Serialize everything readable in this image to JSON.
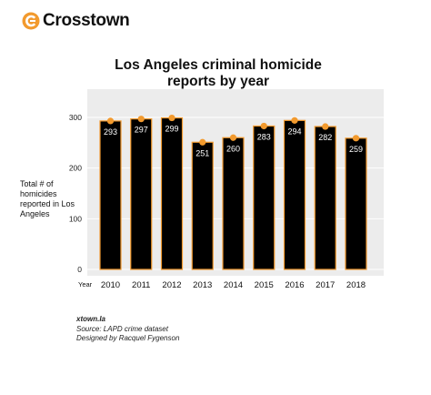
{
  "brand": {
    "name": "Crosstown",
    "icon": "crosstown-logo-icon",
    "accent": "#f29a2e"
  },
  "chart_data": {
    "type": "bar",
    "title": "Los Angeles criminal homicide reports by year",
    "xlabel": "Year",
    "ylabel": "Total # of homicides reported in Los Angeles",
    "categories": [
      "2010",
      "2011",
      "2012",
      "2013",
      "2014",
      "2015",
      "2016",
      "2017",
      "2018"
    ],
    "values": [
      293,
      297,
      299,
      251,
      260,
      283,
      294,
      282,
      259
    ],
    "yticks": [
      0,
      100,
      200,
      300
    ],
    "ylim": [
      0,
      320
    ],
    "grid": true,
    "bar_color": "#000000",
    "bar_outline_color": "#f29a2e",
    "marker_color": "#f29a2e",
    "background_color": "#ececec"
  },
  "footer": {
    "site": "xtown.la",
    "source": "Source: LAPD crime dataset",
    "designer": "Designed by Racquel Fygenson"
  }
}
